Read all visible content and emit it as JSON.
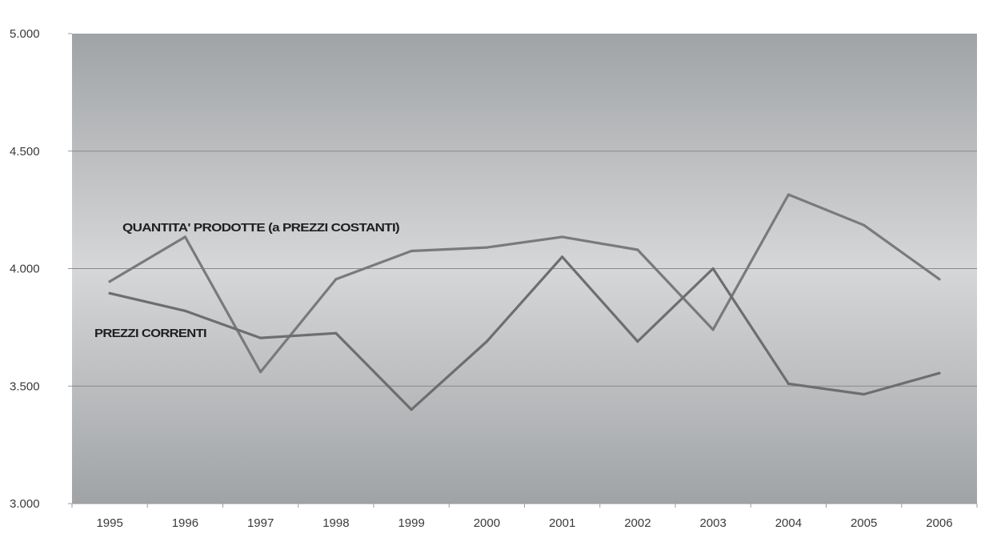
{
  "chart_data": {
    "type": "line",
    "title": "",
    "xlabel": "",
    "ylabel": "",
    "x": [
      "1995",
      "1996",
      "1997",
      "1998",
      "1999",
      "2000",
      "2001",
      "2002",
      "2003",
      "2004",
      "2005",
      "2006"
    ],
    "ylim": [
      3000,
      5000
    ],
    "yticks": [
      3000,
      3500,
      4000,
      4500,
      5000
    ],
    "ytick_labels": [
      "3.000",
      "3.500",
      "4.000",
      "4.500",
      "5.000"
    ],
    "grid": true,
    "legend": "none",
    "series": [
      {
        "name": "QUANTITA' PRODOTTE (a PREZZI COSTANTI)",
        "values": [
          3945,
          4135,
          3560,
          3955,
          4075,
          4090,
          4135,
          4080,
          3740,
          4315,
          4185,
          3955
        ],
        "color": "#7a7a7a"
      },
      {
        "name": "PREZZI CORRENTI",
        "values": [
          3895,
          3820,
          3705,
          3725,
          3400,
          3690,
          4050,
          3690,
          4000,
          3510,
          3465,
          3555
        ],
        "color": "#6e6e6e"
      }
    ]
  },
  "colors": {
    "plot_edge": "#a0a3a6",
    "plot_center": "#d6d7d8",
    "gridline": "#8a8a8a",
    "axis": "#9a9a9a"
  }
}
